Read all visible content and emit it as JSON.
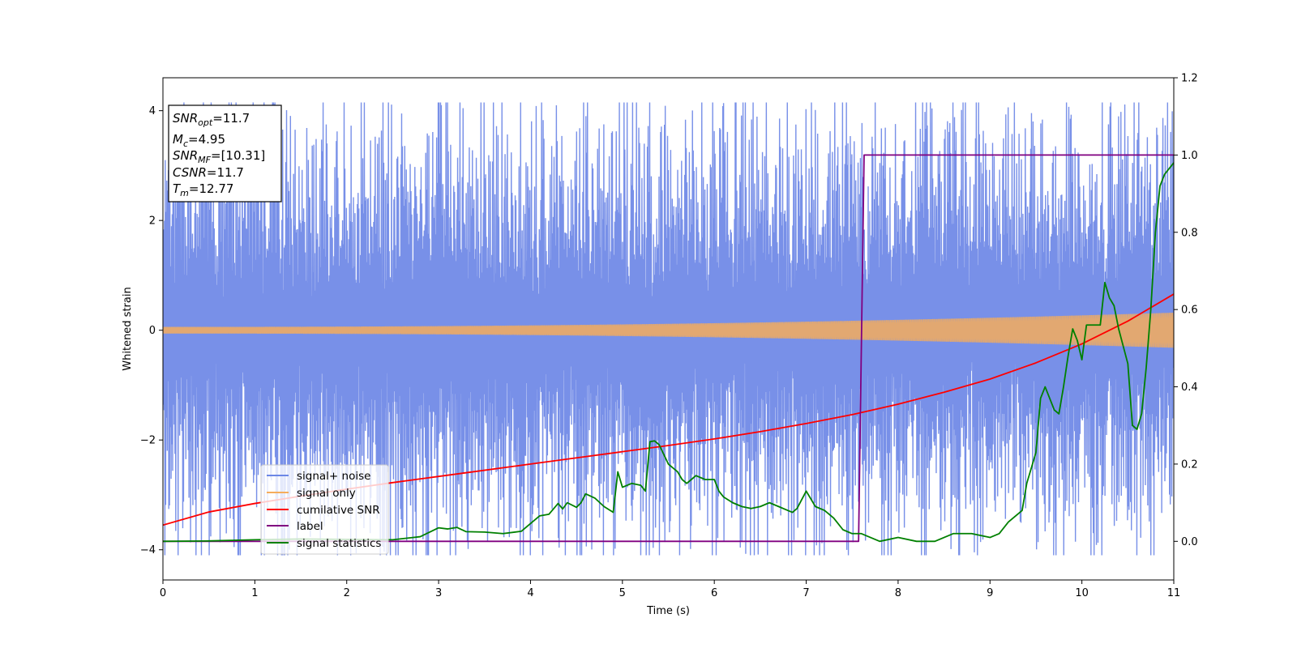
{
  "chart_data": {
    "type": "line",
    "xlabel": "Time (s)",
    "ylabel": "Whitened strain",
    "xlim": [
      0,
      11
    ],
    "ylim_left": [
      -4.55,
      4.6
    ],
    "ylim_right": [
      -0.1,
      1.2
    ],
    "xticks": [
      "0",
      "1",
      "2",
      "3",
      "4",
      "5",
      "6",
      "7",
      "8",
      "9",
      "10",
      "11"
    ],
    "yticks_left": [
      "−4",
      "−2",
      "0",
      "2",
      "4"
    ],
    "yticks_right": [
      "0.0",
      "0.2",
      "0.4",
      "0.6",
      "0.8",
      "1.0",
      "1.2"
    ],
    "grid": false,
    "legend_position": "lower-left",
    "info_box": {
      "position": "top-left",
      "lines": [
        {
          "sym": "SNR",
          "sub": "opt",
          "text": "=11.7"
        },
        {
          "sym": "M",
          "sub": "c",
          "text": "=4.95"
        },
        {
          "sym": "SNR",
          "sub": "MF",
          "text": "=[10.31]"
        },
        {
          "sym": "CSNR",
          "sub": "",
          "text": "=11.7"
        },
        {
          "sym": "T",
          "sub": "m",
          "text": "=12.77"
        }
      ]
    },
    "series": [
      {
        "name": "signal+ noise",
        "color": "#6c87e6",
        "axis": "left",
        "envelope_approx": {
          "amplitude": 2.9,
          "spike_max": 4.15,
          "spike_min": -4.1
        }
      },
      {
        "name": "signal only",
        "color": "#f5ad5c",
        "axis": "left",
        "envelope_approx": {
          "start_amplitude": 0.06,
          "end_amplitude": 0.32
        }
      },
      {
        "name": "cumilative SNR",
        "color": "#ff0000",
        "axis": "right",
        "x": [
          0,
          0.5,
          1,
          1.5,
          2,
          2.5,
          3,
          3.5,
          4,
          4.5,
          5,
          5.5,
          6,
          6.5,
          7,
          7.5,
          8,
          8.5,
          9,
          9.5,
          10,
          10.5,
          11
        ],
        "y": [
          0.042,
          0.076,
          0.098,
          0.117,
          0.135,
          0.152,
          0.168,
          0.184,
          0.2,
          0.216,
          0.232,
          0.248,
          0.265,
          0.284,
          0.305,
          0.328,
          0.355,
          0.386,
          0.42,
          0.462,
          0.511,
          0.57,
          0.64
        ]
      },
      {
        "name": "label",
        "color": "#800080",
        "axis": "right",
        "x": [
          0,
          7.57,
          7.63,
          11
        ],
        "y": [
          0,
          0,
          1,
          1
        ]
      },
      {
        "name": "signal statistics",
        "color": "#008000",
        "axis": "right",
        "x": [
          0,
          0.5,
          1,
          1.5,
          2,
          2.5,
          2.8,
          3.0,
          3.1,
          3.2,
          3.3,
          3.5,
          3.7,
          3.9,
          4.0,
          4.1,
          4.2,
          4.3,
          4.35,
          4.4,
          4.5,
          4.55,
          4.6,
          4.7,
          4.8,
          4.9,
          4.95,
          5.0,
          5.1,
          5.2,
          5.25,
          5.3,
          5.35,
          5.4,
          5.5,
          5.6,
          5.65,
          5.7,
          5.75,
          5.8,
          5.9,
          6.0,
          6.05,
          6.1,
          6.2,
          6.3,
          6.4,
          6.5,
          6.6,
          6.7,
          6.8,
          6.85,
          6.9,
          7.0,
          7.1,
          7.2,
          7.3,
          7.4,
          7.5,
          7.6,
          7.8,
          8.0,
          8.2,
          8.4,
          8.5,
          8.6,
          8.8,
          9.0,
          9.1,
          9.2,
          9.3,
          9.35,
          9.4,
          9.5,
          9.55,
          9.6,
          9.7,
          9.75,
          9.8,
          9.85,
          9.9,
          9.95,
          10.0,
          10.05,
          10.1,
          10.2,
          10.25,
          10.3,
          10.35,
          10.4,
          10.5,
          10.55,
          10.6,
          10.65,
          10.7,
          10.75,
          10.8,
          10.85,
          10.9,
          11.0
        ],
        "y": [
          0,
          0.001,
          0.004,
          0.006,
          0.005,
          0.004,
          0.012,
          0.035,
          0.032,
          0.036,
          0.025,
          0.024,
          0.02,
          0.026,
          0.046,
          0.066,
          0.07,
          0.098,
          0.084,
          0.1,
          0.088,
          0.1,
          0.123,
          0.112,
          0.09,
          0.075,
          0.18,
          0.14,
          0.15,
          0.145,
          0.13,
          0.258,
          0.26,
          0.25,
          0.2,
          0.18,
          0.16,
          0.15,
          0.16,
          0.17,
          0.16,
          0.16,
          0.13,
          0.115,
          0.1,
          0.09,
          0.085,
          0.09,
          0.1,
          0.09,
          0.08,
          0.075,
          0.085,
          0.13,
          0.09,
          0.08,
          0.06,
          0.03,
          0.02,
          0.02,
          0.0,
          0.01,
          0.0,
          0.0,
          0.01,
          0.02,
          0.02,
          0.01,
          0.02,
          0.05,
          0.07,
          0.08,
          0.15,
          0.23,
          0.37,
          0.4,
          0.34,
          0.33,
          0.4,
          0.48,
          0.55,
          0.52,
          0.47,
          0.56,
          0.56,
          0.56,
          0.67,
          0.63,
          0.61,
          0.55,
          0.46,
          0.3,
          0.29,
          0.33,
          0.45,
          0.6,
          0.8,
          0.92,
          0.95,
          0.98
        ]
      }
    ]
  }
}
